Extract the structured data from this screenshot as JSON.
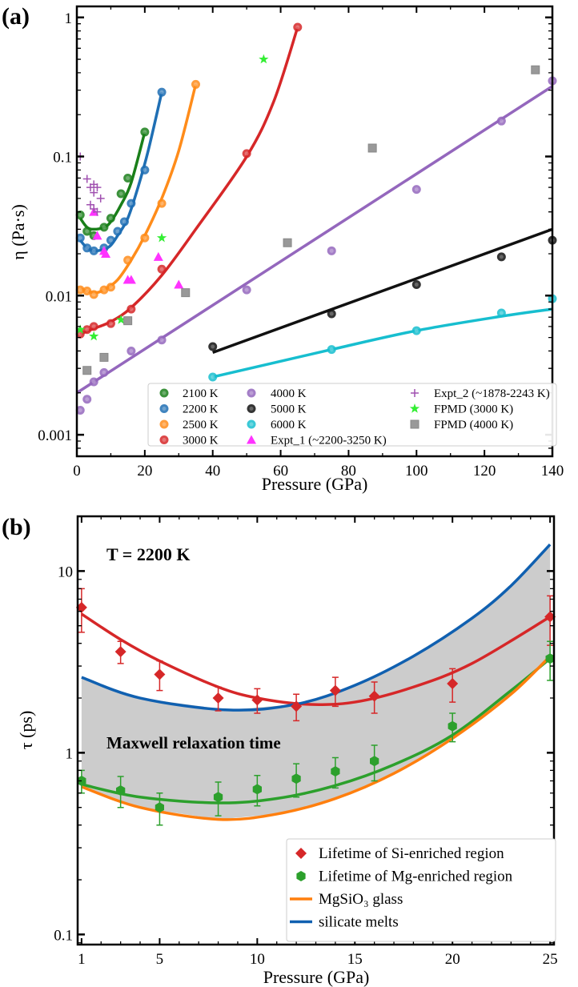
{
  "chart_data": [
    {
      "panel_label": "(a)",
      "type": "scatter",
      "xlabel": "Pressure (GPa)",
      "ylabel": "η (Pa·s)",
      "xlim": [
        0,
        140
      ],
      "ylim": [
        0.0007,
        1.2
      ],
      "yscale": "log",
      "legend_placement": "bottom-right",
      "xticks": [
        0,
        20,
        40,
        60,
        80,
        100,
        120,
        140
      ],
      "yticks": [
        0.001,
        0.01,
        0.1,
        1
      ],
      "ytick_labels": [
        "0.001",
        "0.01",
        "0.1",
        "1"
      ],
      "series": [
        {
          "name": "2100 K",
          "color": "#1a7f1a",
          "marker": "circle",
          "x": [
            1,
            3,
            5,
            8,
            10,
            13,
            15,
            20
          ],
          "y": [
            0.038,
            0.029,
            0.027,
            0.031,
            0.036,
            0.054,
            0.07,
            0.15
          ],
          "fit": [
            [
              1,
              0.036
            ],
            [
              3,
              0.031
            ],
            [
              5,
              0.03
            ],
            [
              8,
              0.031
            ],
            [
              10,
              0.034
            ],
            [
              13,
              0.045
            ],
            [
              16,
              0.065
            ],
            [
              20,
              0.15
            ]
          ]
        },
        {
          "name": "2200 K",
          "color": "#1f6fb4",
          "marker": "circle",
          "x": [
            1,
            3,
            5,
            8,
            10,
            12,
            14,
            16,
            20,
            25
          ],
          "y": [
            0.026,
            0.022,
            0.021,
            0.022,
            0.025,
            0.029,
            0.034,
            0.046,
            0.08,
            0.29
          ],
          "fit": [
            [
              1,
              0.025
            ],
            [
              3,
              0.022
            ],
            [
              5,
              0.021
            ],
            [
              8,
              0.0215
            ],
            [
              10,
              0.023
            ],
            [
              12,
              0.027
            ],
            [
              15,
              0.036
            ],
            [
              18,
              0.06
            ],
            [
              21,
              0.11
            ],
            [
              25,
              0.29
            ]
          ]
        },
        {
          "name": "2500 K",
          "color": "#ff8c1a",
          "marker": "circle",
          "x": [
            1,
            3,
            5,
            8,
            10,
            15,
            20,
            25,
            35
          ],
          "y": [
            0.011,
            0.0108,
            0.0102,
            0.011,
            0.0115,
            0.018,
            0.026,
            0.046,
            0.33
          ],
          "fit": [
            [
              1,
              0.0112
            ],
            [
              5,
              0.0105
            ],
            [
              8,
              0.011
            ],
            [
              12,
              0.013
            ],
            [
              16,
              0.018
            ],
            [
              20,
              0.027
            ],
            [
              25,
              0.05
            ],
            [
              30,
              0.11
            ],
            [
              35,
              0.33
            ]
          ]
        },
        {
          "name": "3000 K",
          "color": "#d62728",
          "marker": "circle",
          "x": [
            1,
            3,
            5,
            10,
            16,
            25,
            50,
            65
          ],
          "y": [
            0.0053,
            0.0057,
            0.006,
            0.0063,
            0.008,
            0.0155,
            0.105,
            0.85
          ],
          "fit": [
            [
              1,
              0.0053
            ],
            [
              5,
              0.0058
            ],
            [
              10,
              0.0065
            ],
            [
              16,
              0.0082
            ],
            [
              25,
              0.014
            ],
            [
              35,
              0.03
            ],
            [
              50,
              0.1
            ],
            [
              58,
              0.25
            ],
            [
              65,
              0.85
            ]
          ]
        },
        {
          "name": "4000 K",
          "color": "#9467bd",
          "marker": "circle",
          "x": [
            1,
            3,
            5,
            8,
            16,
            25,
            50,
            75,
            100,
            125,
            140
          ],
          "y": [
            0.0015,
            0.0018,
            0.0024,
            0.0028,
            0.004,
            0.0048,
            0.011,
            0.021,
            0.058,
            0.18,
            0.35
          ],
          "fit": [
            [
              0,
              0.002
            ],
            [
              140,
              0.32
            ]
          ]
        },
        {
          "name": "5000 K",
          "color": "#111111",
          "marker": "circle",
          "x": [
            40,
            75,
            100,
            125,
            140
          ],
          "y": [
            0.0043,
            0.0074,
            0.012,
            0.019,
            0.025
          ],
          "fit": [
            [
              40,
              0.0039
            ],
            [
              140,
              0.03
            ]
          ]
        },
        {
          "name": "6000 K",
          "color": "#17becf",
          "marker": "circle",
          "x": [
            40,
            75,
            100,
            125,
            140
          ],
          "y": [
            0.0026,
            0.0041,
            0.0056,
            0.0075,
            0.0095
          ],
          "fit": [
            [
              40,
              0.0026
            ],
            [
              75,
              0.0041
            ],
            [
              100,
              0.0056
            ],
            [
              125,
              0.0071
            ],
            [
              140,
              0.008
            ]
          ]
        },
        {
          "name": "Expt_1 (~2200-3250 K)",
          "color": "#ff33ff",
          "marker": "triangle",
          "x": [
            5,
            6,
            8,
            8.5,
            15,
            16,
            24,
            30
          ],
          "y": [
            0.04,
            0.027,
            0.021,
            0.02,
            0.013,
            0.013,
            0.019,
            0.012
          ]
        },
        {
          "name": "Expt_2 (~1878-2243 K)",
          "color": "#a050b0",
          "marker": "plus",
          "x": [
            1,
            3,
            4,
            5,
            6,
            7,
            4,
            5,
            6,
            5
          ],
          "y": [
            0.1,
            0.069,
            0.06,
            0.055,
            0.06,
            0.05,
            0.045,
            0.042,
            0.04,
            0.063
          ]
        },
        {
          "name": "FPMD (3000 K)",
          "color": "#33ee33",
          "marker": "star",
          "x": [
            1,
            5,
            13,
            25,
            55
          ],
          "y": [
            0.0057,
            0.0051,
            0.0067,
            0.026,
            0.5
          ]
        },
        {
          "name": "FPMD (4000 K)",
          "color": "#999999",
          "marker": "square",
          "x": [
            3,
            8,
            15,
            32,
            62,
            87,
            135
          ],
          "y": [
            0.0029,
            0.0036,
            0.0066,
            0.0105,
            0.024,
            0.115,
            0.42
          ]
        }
      ]
    },
    {
      "panel_label": "(b)",
      "type": "scatter",
      "xlabel": "Pressure (GPa)",
      "ylabel": "τ (ps)",
      "xlim": [
        0.8,
        25.2
      ],
      "ylim": [
        0.088,
        20
      ],
      "yscale": "log",
      "legend_placement": "bottom-right",
      "xticks": [
        1,
        5,
        10,
        15,
        20,
        25
      ],
      "yticks": [
        0.1,
        1,
        10
      ],
      "ytick_labels": [
        "0.1",
        "1",
        "10"
      ],
      "annotations": [
        "T = 2200 K",
        "Maxwell relaxation time"
      ],
      "shaded_region": {
        "between": [
          "silicate melts",
          "MgSiO3 glass"
        ],
        "color": "#cccccc"
      },
      "series": [
        {
          "name": "Lifetime of Si-enriched region",
          "color": "#d62728",
          "marker": "diamond",
          "x": [
            1,
            3,
            5,
            8,
            10,
            12,
            14,
            16,
            20,
            25
          ],
          "y": [
            6.3,
            3.6,
            2.7,
            2.0,
            1.95,
            1.8,
            2.2,
            2.05,
            2.4,
            5.6
          ],
          "err": [
            1.7,
            0.5,
            0.5,
            0.3,
            0.3,
            0.3,
            0.4,
            0.4,
            0.5,
            1.7
          ],
          "fit": [
            [
              1,
              5.8
            ],
            [
              3,
              4.2
            ],
            [
              5,
              3.2
            ],
            [
              8,
              2.3
            ],
            [
              10,
              2.0
            ],
            [
              12.5,
              1.85
            ],
            [
              15,
              1.9
            ],
            [
              18,
              2.3
            ],
            [
              21,
              3.1
            ],
            [
              25,
              5.6
            ]
          ]
        },
        {
          "name": "Lifetime of Mg-enriched region",
          "color": "#2ca02c",
          "marker": "hexagon",
          "x": [
            1,
            3,
            5,
            8,
            10,
            12,
            14,
            16,
            20,
            25
          ],
          "y": [
            0.7,
            0.62,
            0.5,
            0.57,
            0.63,
            0.72,
            0.79,
            0.9,
            1.4,
            3.3
          ],
          "err": [
            0.1,
            0.12,
            0.1,
            0.12,
            0.12,
            0.15,
            0.15,
            0.2,
            0.25,
            0.8
          ],
          "fit": [
            [
              1,
              0.67
            ],
            [
              4,
              0.57
            ],
            [
              8,
              0.53
            ],
            [
              11,
              0.56
            ],
            [
              14,
              0.66
            ],
            [
              17,
              0.86
            ],
            [
              20,
              1.25
            ],
            [
              23,
              2.2
            ],
            [
              25,
              3.3
            ]
          ]
        },
        {
          "name": "MgSiO₃ glass",
          "color": "#ff7f0e",
          "marker": "line",
          "fit": [
            [
              1,
              0.65
            ],
            [
              4,
              0.5
            ],
            [
              8,
              0.43
            ],
            [
              11,
              0.46
            ],
            [
              14,
              0.56
            ],
            [
              17,
              0.77
            ],
            [
              20,
              1.2
            ],
            [
              23,
              2.1
            ],
            [
              25,
              3.4
            ]
          ]
        },
        {
          "name": "silicate melts",
          "color": "#1060b0",
          "marker": "line",
          "fit": [
            [
              1,
              2.6
            ],
            [
              4,
              2.0
            ],
            [
              8.5,
              1.72
            ],
            [
              12,
              1.85
            ],
            [
              15,
              2.35
            ],
            [
              18,
              3.4
            ],
            [
              21,
              5.5
            ],
            [
              23,
              8.3
            ],
            [
              25,
              14
            ]
          ]
        }
      ]
    }
  ]
}
